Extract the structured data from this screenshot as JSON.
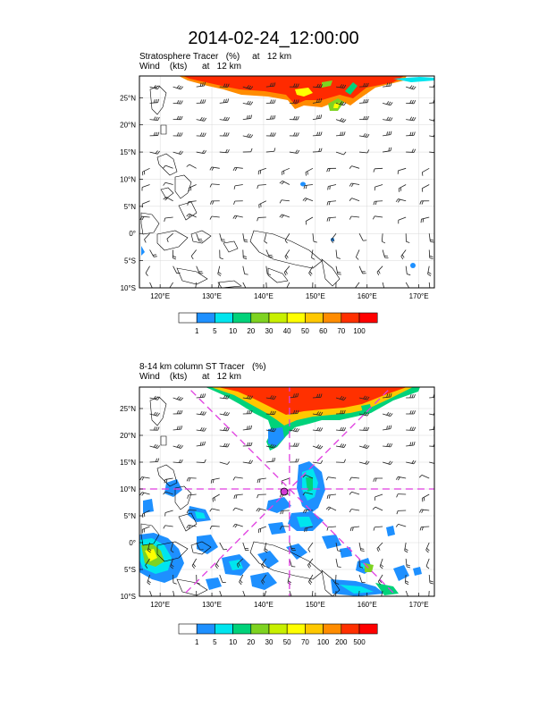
{
  "page": {
    "title": "2014-02-24_12:00:00"
  },
  "top_panel": {
    "line1": "Stratosphere Tracer   (%)     at   12 km",
    "line2": "Wind    (kts)      at   12 km",
    "lat_labels": [
      "25°N",
      "20°N",
      "15°N",
      "10°N",
      "5°N",
      "0°",
      "5°S",
      "10°S"
    ],
    "lon_labels": [
      "120°E",
      "130°E",
      "140°E",
      "150°E",
      "160°E",
      "170°E"
    ],
    "colorbar_labels": [
      "1",
      "5",
      "10",
      "20",
      "30",
      "40",
      "50",
      "60",
      "70",
      "100"
    ],
    "colorbar_colors": [
      "#ffffff",
      "#1e90ff",
      "#00e5ee",
      "#00d27a",
      "#7ed321",
      "#c8f000",
      "#ffff00",
      "#ffc800",
      "#ff8c00",
      "#ff3000",
      "#ff0000"
    ]
  },
  "bottom_panel": {
    "line1": "8-14 km column ST Tracer   (%)",
    "line2": "Wind    (kts)      at   12 km",
    "lat_labels": [
      "25°N",
      "20°N",
      "15°N",
      "10°N",
      "5°N",
      "0°",
      "5°S",
      "10°S"
    ],
    "lon_labels": [
      "120°E",
      "130°E",
      "140°E",
      "150°E",
      "160°E",
      "170°E"
    ],
    "colorbar_labels": [
      "1",
      "5",
      "10",
      "20",
      "30",
      "50",
      "70",
      "100",
      "200",
      "500"
    ],
    "colorbar_colors": [
      "#ffffff",
      "#1e90ff",
      "#00e5ee",
      "#00d27a",
      "#7ed321",
      "#c8f000",
      "#ffff00",
      "#ffc800",
      "#ff8c00",
      "#ff3000",
      "#ff0000"
    ]
  },
  "map_extent": {
    "lon_min": 116,
    "lon_max": 173,
    "lat_min": -10,
    "lat_max": 29
  },
  "cross_center": {
    "lon": 145,
    "lat": 10
  },
  "cross_color": "#e03ce0"
}
